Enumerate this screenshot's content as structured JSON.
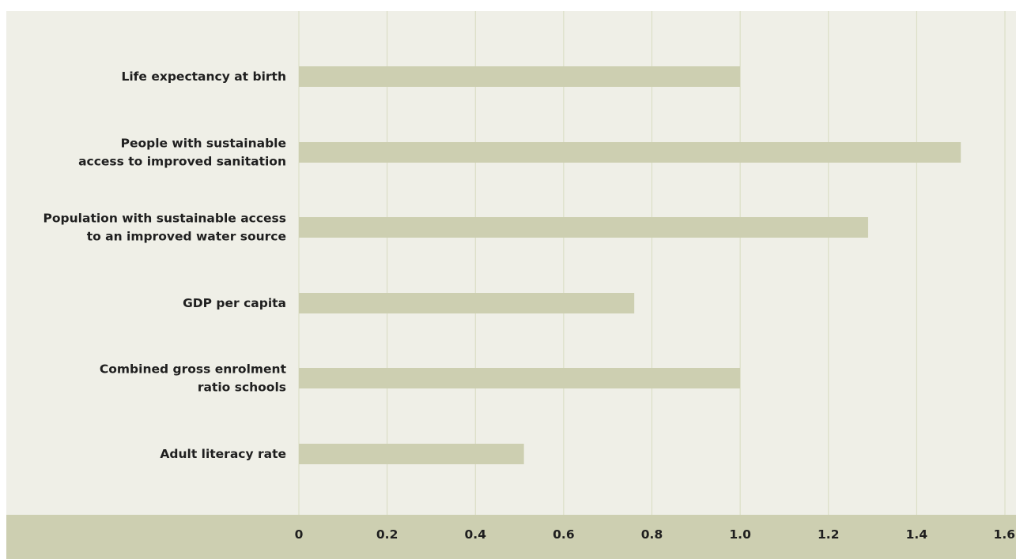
{
  "chart_data": {
    "type": "bar",
    "orientation": "horizontal",
    "categories": [
      "Life expectancy at birth",
      "People with sustainable access to improved sanitation",
      "Population with sustainable access to an improved water source",
      "GDP per capita",
      "Combined gross enrolment ratio schools",
      "Adult literacy rate"
    ],
    "category_lines": [
      [
        "Life expectancy at birth"
      ],
      [
        "People with sustainable",
        "access to improved sanitation"
      ],
      [
        "Population with sustainable access",
        "to an improved water source"
      ],
      [
        "GDP per capita"
      ],
      [
        "Combined gross enrolment",
        "ratio schools"
      ],
      [
        "Adult literacy rate"
      ]
    ],
    "values": [
      1.0,
      1.5,
      1.29,
      0.76,
      1.0,
      0.51
    ],
    "xlim": [
      0,
      1.6
    ],
    "x_ticks": [
      "0",
      "0.2",
      "0.4",
      "0.6",
      "0.8",
      "1.0",
      "1.2",
      "1.4",
      "1.6"
    ],
    "grid": true,
    "title": "",
    "xlabel": "",
    "ylabel": "",
    "colors": {
      "background": "#efefe7",
      "bar": "#cdcfb1",
      "gridline": "#d8dcc0",
      "axis_band": "#cdcfb1",
      "text": "#1f1f1f"
    }
  }
}
